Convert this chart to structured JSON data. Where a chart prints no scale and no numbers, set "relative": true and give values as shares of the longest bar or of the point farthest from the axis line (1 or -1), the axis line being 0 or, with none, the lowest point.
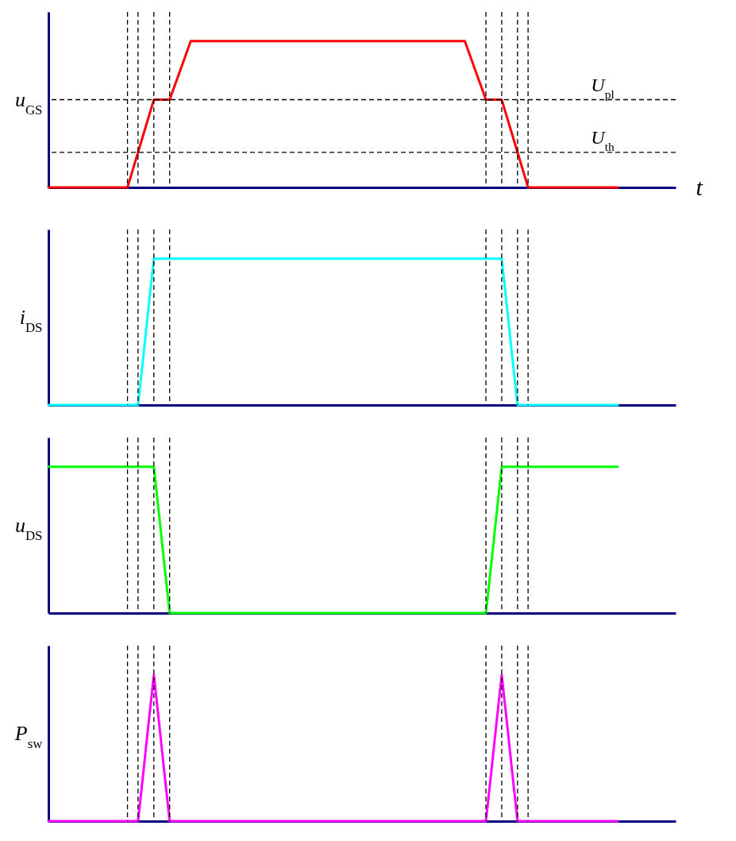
{
  "chart_data": [
    {
      "type": "line",
      "relative": true,
      "grid": "x",
      "xlabel": "t",
      "ylabel": "u$_{GS}$",
      "color": "#ff0000",
      "categories": [
        null,
        null,
        null,
        null,
        null,
        null,
        null,
        null,
        null,
        null,
        null,
        null,
        null,
        null,
        null,
        null,
        null,
        null,
        null,
        null,
        null,
        null,
        null,
        null,
        null,
        null,
        null,
        null,
        null,
        null,
        null,
        null,
        null,
        null,
        null,
        null,
        null,
        null,
        null,
        null,
        null,
        null,
        null,
        null,
        null,
        null,
        null,
        null,
        null,
        null,
        null,
        null,
        null,
        null,
        null,
        null,
        null,
        null,
        null,
        null,
        null,
        null,
        null,
        null,
        null,
        null,
        null,
        null,
        null,
        null,
        null,
        null,
        null,
        null,
        null,
        null,
        null,
        null,
        null,
        null,
        null,
        null,
        null,
        null,
        null,
        null,
        null,
        null,
        null,
        null,
        null,
        null,
        null,
        null,
        null,
        null,
        null,
        null,
        null,
        null,
        null,
        null,
        null,
        null,
        null,
        null,
        null,
        null,
        null,
        null,
        null,
        null,
        null,
        null,
        null,
        null,
        null,
        null,
        null,
        null
      ],
      "values": [
        0,
        0,
        0,
        0,
        0,
        0,
        0,
        0,
        0,
        0,
        0,
        0,
        0,
        0,
        0,
        0,
        0.12,
        0.24,
        0.36,
        0.48,
        0.6,
        0.6,
        0.6,
        0.6,
        0.7,
        0.8,
        0.9,
        1,
        1,
        1,
        1,
        1,
        1,
        1,
        1,
        1,
        1,
        1,
        1,
        1,
        1,
        1,
        1,
        1,
        1,
        1,
        1,
        1,
        1,
        1,
        1,
        1,
        1,
        1,
        1,
        1,
        1,
        1,
        1,
        1,
        1,
        1,
        1,
        1,
        1,
        1,
        1,
        1,
        1,
        1,
        1,
        1,
        1,
        1,
        1,
        1,
        1,
        1,
        1,
        1,
        0.9,
        0.8,
        0.7,
        0.6,
        0.6,
        0.6,
        0.6,
        0.48,
        0.36,
        0.24,
        0.12,
        0,
        0,
        0,
        0,
        0,
        0,
        0,
        0,
        0,
        0,
        0,
        0,
        0,
        0,
        0,
        0,
        0,
        0,
        null,
        null,
        null,
        null,
        null,
        null,
        null,
        null,
        null,
        null,
        null
      ],
      "ref_lines": [
        {
          "axis": "y",
          "value": 0.6,
          "label": "U$_{pl}$",
          "line_style": "dashed"
        },
        {
          "axis": "y",
          "value": 0.24,
          "label": "U$_{th}$",
          "line_style": "dashed"
        }
      ]
    },
    {
      "type": "line",
      "relative": true,
      "grid": "x",
      "ylabel": "i$_{DS}$",
      "color": "#00ffff",
      "categories": [
        null,
        null,
        null,
        null,
        null,
        null,
        null,
        null,
        null,
        null,
        null,
        null,
        null,
        null,
        null,
        null,
        null,
        null,
        null,
        null,
        null,
        null,
        null,
        null,
        null,
        null,
        null,
        null,
        null,
        null,
        null,
        null,
        null,
        null,
        null,
        null,
        null,
        null,
        null,
        null,
        null,
        null,
        null,
        null,
        null,
        null,
        null,
        null,
        null,
        null,
        null,
        null,
        null,
        null,
        null,
        null,
        null,
        null,
        null,
        null,
        null,
        null,
        null,
        null,
        null,
        null,
        null,
        null,
        null,
        null,
        null,
        null,
        null,
        null,
        null,
        null,
        null,
        null,
        null,
        null,
        null,
        null,
        null,
        null,
        null,
        null,
        null,
        null,
        null,
        null,
        null,
        null,
        null,
        null,
        null,
        null,
        null,
        null,
        null,
        null,
        null,
        null,
        null,
        null,
        null,
        null,
        null,
        null,
        null,
        null,
        null,
        null,
        null,
        null,
        null,
        null,
        null,
        null,
        null,
        null
      ],
      "values": [
        0,
        0,
        0,
        0,
        0,
        0,
        0,
        0,
        0,
        0,
        0,
        0,
        0,
        0,
        0,
        0,
        0,
        0,
        0.33,
        0.67,
        1,
        1,
        1,
        1,
        1,
        1,
        1,
        1,
        1,
        1,
        1,
        1,
        1,
        1,
        1,
        1,
        1,
        1,
        1,
        1,
        1,
        1,
        1,
        1,
        1,
        1,
        1,
        1,
        1,
        1,
        1,
        1,
        1,
        1,
        1,
        1,
        1,
        1,
        1,
        1,
        1,
        1,
        1,
        1,
        1,
        1,
        1,
        1,
        1,
        1,
        1,
        1,
        1,
        1,
        1,
        1,
        1,
        1,
        1,
        1,
        1,
        1,
        1,
        1,
        1,
        1,
        1,
        0.67,
        0.33,
        0,
        0,
        0,
        0,
        0,
        0,
        0,
        0,
        0,
        0,
        0,
        0,
        0,
        0,
        0,
        0,
        0,
        0,
        0,
        0,
        null,
        null,
        null,
        null,
        null,
        null,
        null,
        null,
        null,
        null,
        null
      ]
    },
    {
      "type": "line",
      "relative": true,
      "grid": "x",
      "ylabel": "u$_{DS}$",
      "color": "#00ff00",
      "categories": [
        null,
        null,
        null,
        null,
        null,
        null,
        null,
        null,
        null,
        null,
        null,
        null,
        null,
        null,
        null,
        null,
        null,
        null,
        null,
        null,
        null,
        null,
        null,
        null,
        null,
        null,
        null,
        null,
        null,
        null,
        null,
        null,
        null,
        null,
        null,
        null,
        null,
        null,
        null,
        null,
        null,
        null,
        null,
        null,
        null,
        null,
        null,
        null,
        null,
        null,
        null,
        null,
        null,
        null,
        null,
        null,
        null,
        null,
        null,
        null,
        null,
        null,
        null,
        null,
        null,
        null,
        null,
        null,
        null,
        null,
        null,
        null,
        null,
        null,
        null,
        null,
        null,
        null,
        null,
        null,
        null,
        null,
        null,
        null,
        null,
        null,
        null,
        null,
        null,
        null,
        null,
        null,
        null,
        null,
        null,
        null,
        null,
        null,
        null,
        null,
        null,
        null,
        null,
        null,
        null,
        null,
        null,
        null,
        null,
        null,
        null,
        null,
        null,
        null,
        null,
        null,
        null,
        null,
        null,
        null
      ],
      "values": [
        1,
        1,
        1,
        1,
        1,
        1,
        1,
        1,
        1,
        1,
        1,
        1,
        1,
        1,
        1,
        1,
        1,
        1,
        1,
        1,
        1,
        0.67,
        0.33,
        0,
        0,
        0,
        0,
        0,
        0,
        0,
        0,
        0,
        0,
        0,
        0,
        0,
        0,
        0,
        0,
        0,
        0,
        0,
        0,
        0,
        0,
        0,
        0,
        0,
        0,
        0,
        0,
        0,
        0,
        0,
        0,
        0,
        0,
        0,
        0,
        0,
        0,
        0,
        0,
        0,
        0,
        0,
        0,
        0,
        0,
        0,
        0,
        0,
        0,
        0,
        0,
        0,
        0,
        0,
        0,
        0,
        0,
        0,
        0,
        0,
        0.33,
        0.67,
        1,
        1,
        1,
        1,
        1,
        1,
        1,
        1,
        1,
        1,
        1,
        1,
        1,
        1,
        1,
        1,
        1,
        1,
        1,
        1,
        1,
        1,
        1,
        null,
        null,
        null,
        null,
        null,
        null,
        null,
        null,
        null,
        null,
        null
      ]
    },
    {
      "type": "line",
      "relative": true,
      "grid": "x",
      "ylabel": "P$_{sw}$",
      "color": "#ff00ff",
      "categories": [
        null,
        null,
        null,
        null,
        null,
        null,
        null,
        null,
        null,
        null,
        null,
        null,
        null,
        null,
        null,
        null,
        null,
        null,
        null,
        null,
        null,
        null,
        null,
        null,
        null,
        null,
        null,
        null,
        null,
        null,
        null,
        null,
        null,
        null,
        null,
        null,
        null,
        null,
        null,
        null,
        null,
        null,
        null,
        null,
        null,
        null,
        null,
        null,
        null,
        null,
        null,
        null,
        null,
        null,
        null,
        null,
        null,
        null,
        null,
        null,
        null,
        null,
        null,
        null,
        null,
        null,
        null,
        null,
        null,
        null,
        null,
        null,
        null,
        null,
        null,
        null,
        null,
        null,
        null,
        null,
        null,
        null,
        null,
        null,
        null,
        null,
        null,
        null,
        null,
        null,
        null,
        null,
        null,
        null,
        null,
        null,
        null,
        null,
        null,
        null,
        null,
        null,
        null,
        null,
        null,
        null,
        null,
        null,
        null,
        null,
        null,
        null,
        null,
        null,
        null,
        null,
        null,
        null,
        null,
        null
      ],
      "values": [
        0,
        0,
        0,
        0,
        0,
        0,
        0,
        0,
        0,
        0,
        0,
        0,
        0,
        0,
        0,
        0,
        0,
        0,
        0.33,
        0.67,
        1,
        0.67,
        0.33,
        0,
        0,
        0,
        0,
        0,
        0,
        0,
        0,
        0,
        0,
        0,
        0,
        0,
        0,
        0,
        0,
        0,
        0,
        0,
        0,
        0,
        0,
        0,
        0,
        0,
        0,
        0,
        0,
        0,
        0,
        0,
        0,
        0,
        0,
        0,
        0,
        0,
        0,
        0,
        0,
        0,
        0,
        0,
        0,
        0,
        0,
        0,
        0,
        0,
        0,
        0,
        0,
        0,
        0,
        0,
        0,
        0,
        0,
        0,
        0,
        0,
        0.33,
        0.67,
        1,
        0.67,
        0.33,
        0,
        0,
        0,
        0,
        0,
        0,
        0,
        0,
        0,
        0,
        0,
        0,
        0,
        0,
        0,
        0,
        0,
        0,
        0,
        0,
        null,
        null,
        null,
        null,
        null,
        null,
        null,
        null,
        null,
        null,
        null
      ]
    }
  ]
}
